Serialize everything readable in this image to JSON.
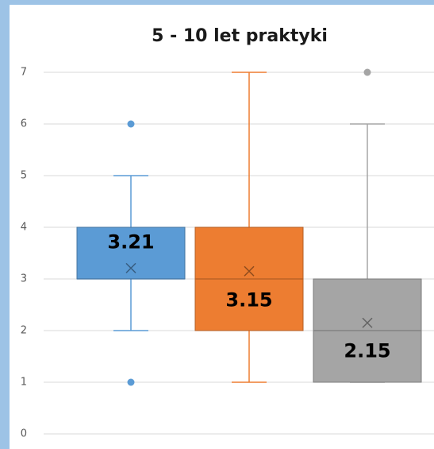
{
  "chart_data": {
    "type": "box",
    "title": "5 - 10 let praktyki",
    "ylim": [
      0,
      7
    ],
    "yticks": [
      0,
      1,
      2,
      3,
      4,
      5,
      6,
      7
    ],
    "grid": true,
    "boxes": [
      {
        "color": "#5b9bd5",
        "min": 2,
        "q1": 3,
        "median": 3,
        "q3": 4,
        "max": 5,
        "mean": 3.21,
        "outliers": [
          6,
          1
        ]
      },
      {
        "color": "#ed7d31",
        "min": 1,
        "q1": 2,
        "median": 3,
        "q3": 4,
        "max": 7,
        "mean": 3.15,
        "outliers": []
      },
      {
        "color": "#a5a5a5",
        "min": 1,
        "q1": 1,
        "median": 2,
        "q3": 3,
        "max": 6,
        "mean": 2.15,
        "outliers": [
          7
        ]
      }
    ]
  }
}
